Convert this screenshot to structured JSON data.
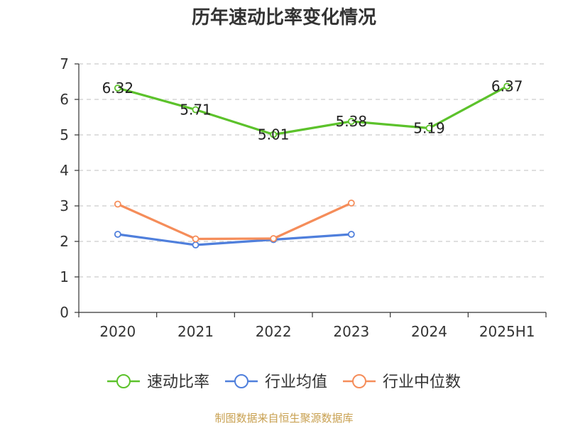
{
  "chart_data": {
    "type": "line",
    "title": "历年速动比率变化情况",
    "categories": [
      "2020",
      "2021",
      "2022",
      "2023",
      "2024",
      "2025H1"
    ],
    "ylim": [
      0,
      7
    ],
    "yticks": [
      0,
      1,
      2,
      3,
      4,
      5,
      6,
      7
    ],
    "grid": true,
    "legend_position": "bottom",
    "series": [
      {
        "name": "速动比率",
        "color": "#5cc22b",
        "values": [
          6.32,
          5.71,
          5.01,
          5.38,
          5.19,
          6.37
        ],
        "labels": [
          "6.32",
          "5.71",
          "5.01",
          "5.38",
          "5.19",
          "6.37"
        ]
      },
      {
        "name": "行业均值",
        "color": "#4f7fdc",
        "values": [
          2.2,
          1.9,
          2.05,
          2.2,
          null,
          null
        ]
      },
      {
        "name": "行业中位数",
        "color": "#f58d5a",
        "values": [
          3.05,
          2.07,
          2.08,
          3.08,
          null,
          null
        ]
      }
    ],
    "source": "制图数据来自恒生聚源数据库"
  }
}
